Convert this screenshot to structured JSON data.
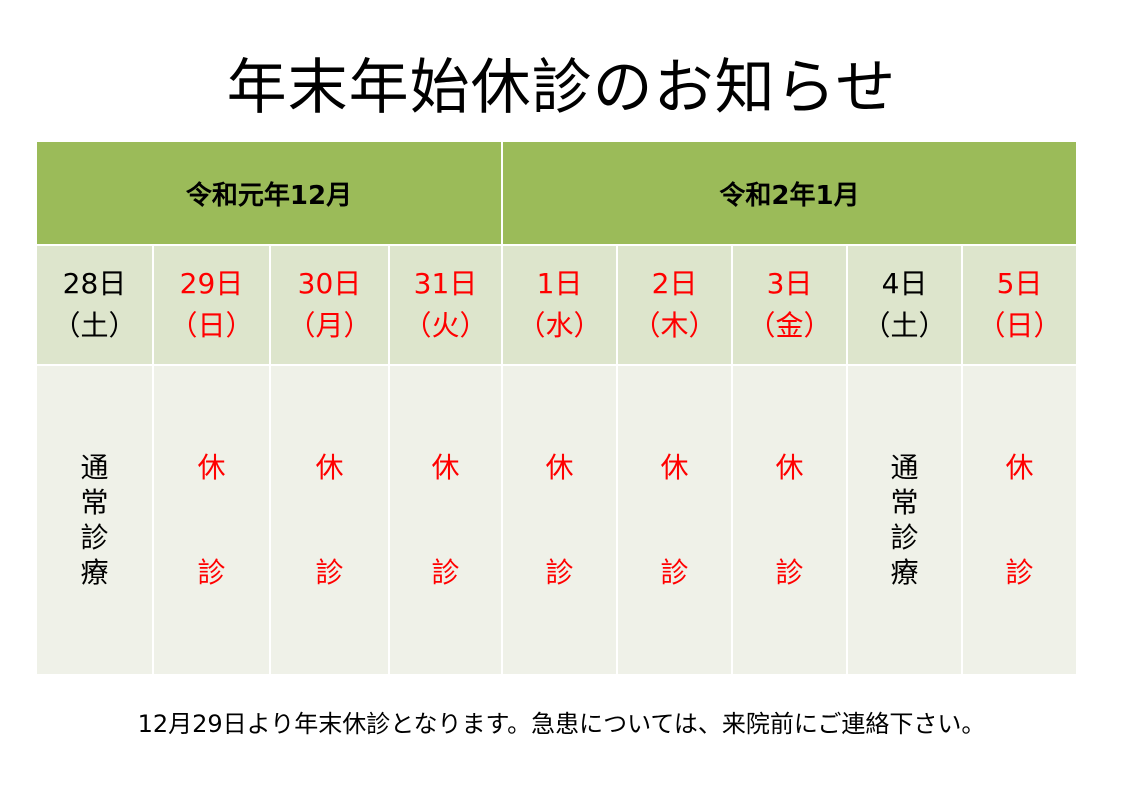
{
  "title": "年末年始休診のお知らせ",
  "months": [
    {
      "label": "令和元年12月"
    },
    {
      "label": "令和2年1月"
    }
  ],
  "days": [
    {
      "date": "28日",
      "weekday": "（土）",
      "holiday": false,
      "status": "通常診療"
    },
    {
      "date": "29日",
      "weekday": "（日）",
      "holiday": true,
      "status": "休診"
    },
    {
      "date": "30日",
      "weekday": "（月）",
      "holiday": true,
      "status": "休診"
    },
    {
      "date": "31日",
      "weekday": "（火）",
      "holiday": true,
      "status": "休診"
    },
    {
      "date": "1日",
      "weekday": "（水）",
      "holiday": true,
      "status": "休診"
    },
    {
      "date": "2日",
      "weekday": "（木）",
      "holiday": true,
      "status": "休診"
    },
    {
      "date": "3日",
      "weekday": "（金）",
      "holiday": true,
      "status": "休診"
    },
    {
      "date": "4日",
      "weekday": "（土）",
      "holiday": false,
      "status": "通常診療"
    },
    {
      "date": "5日",
      "weekday": "（日）",
      "holiday": true,
      "status": "休診"
    }
  ],
  "footer": "12月29日より年末休診となります。急患については、来院前にご連絡下さい。",
  "colors": {
    "header_green": "#9bbb59",
    "day_row": "#dde5cc",
    "body_row": "#eff1e8",
    "holiday_red": "#ff0000"
  }
}
